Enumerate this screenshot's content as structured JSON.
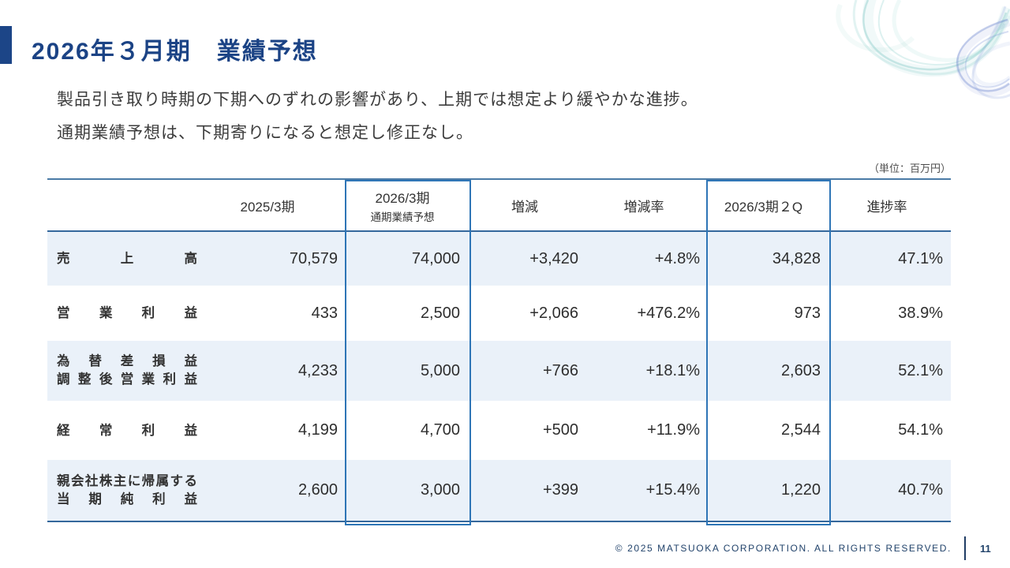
{
  "slide": {
    "title": "2026年３月期　業績予想",
    "body_lines": [
      "製品引き取り時期の下期へのずれの影響があり、上期では想定より緩やかな進捗。",
      "通期業績予想は、下期寄りになると想定し修正なし。"
    ],
    "unit_note": "（単位：百万円）",
    "footer": {
      "copyright": "© 2025 MATSUOKA CORPORATION. ALL RIGHTS RESERVED.",
      "page_number": "11"
    }
  },
  "table": {
    "columns": [
      {
        "lines": [
          ""
        ],
        "highlight": false
      },
      {
        "lines": [
          "2025/3期"
        ],
        "highlight": false
      },
      {
        "lines": [
          "2026/3期",
          "通期業績予想"
        ],
        "highlight": true
      },
      {
        "lines": [
          "増減"
        ],
        "highlight": false
      },
      {
        "lines": [
          "増減率"
        ],
        "highlight": false
      },
      {
        "lines": [
          "2026/3期２Q"
        ],
        "highlight": true
      },
      {
        "lines": [
          "進捗率"
        ],
        "highlight": false
      }
    ],
    "rows": [
      {
        "label_lines": [
          "売上高"
        ],
        "values": [
          "70,579",
          "74,000",
          "+3,420",
          "+4.8%",
          "34,828",
          "47.1%"
        ]
      },
      {
        "label_lines": [
          "営業利益"
        ],
        "values": [
          "433",
          "2,500",
          "+2,066",
          "+476.2%",
          "973",
          "38.9%"
        ]
      },
      {
        "label_lines": [
          "為替差損益",
          "調整後営業利益"
        ],
        "values": [
          "4,233",
          "5,000",
          "+766",
          "+18.1%",
          "2,603",
          "52.1%"
        ]
      },
      {
        "label_lines": [
          "経常利益"
        ],
        "values": [
          "4,199",
          "4,700",
          "+500",
          "+11.9%",
          "2,544",
          "54.1%"
        ]
      },
      {
        "label_lines": [
          "親会社株主に帰属する",
          "当期純利益"
        ],
        "values": [
          "2,600",
          "3,000",
          "+399",
          "+15.4%",
          "1,220",
          "40.7%"
        ]
      }
    ]
  },
  "colors": {
    "accent": "#1c4587",
    "title": "#1b4385",
    "table_line": "#35689c",
    "highlight_border": "#2e75b6",
    "row_alt_bg": "#eaf1f9",
    "footer_navy": "#22436b"
  }
}
